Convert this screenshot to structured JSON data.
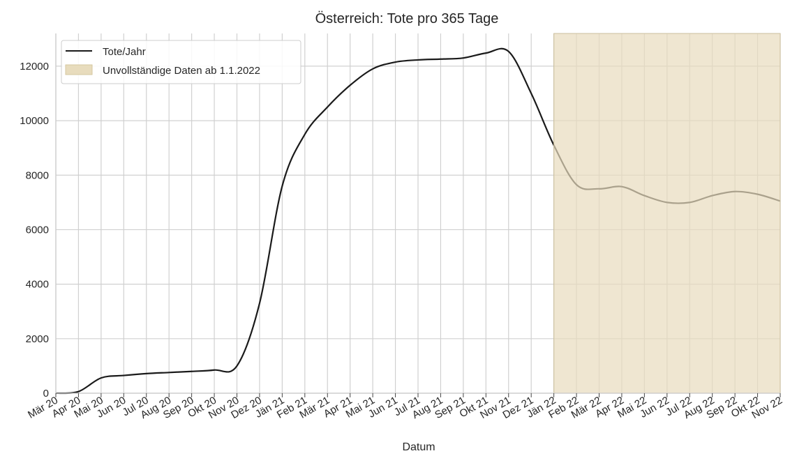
{
  "chart_data": {
    "type": "line",
    "title": "Österreich: Tote pro 365 Tage",
    "xlabel": "Datum",
    "ylabel": "",
    "x_ticks": [
      "Mär 20",
      "Apr 20",
      "Mai 20",
      "Jun 20",
      "Jul 20",
      "Aug 20",
      "Sep 20",
      "Okt 20",
      "Nov 20",
      "Dez 20",
      "Jän 21",
      "Feb 21",
      "Mär 21",
      "Apr 21",
      "Mai 21",
      "Jun 21",
      "Jul 21",
      "Aug 21",
      "Sep 21",
      "Okt 21",
      "Nov 21",
      "Dez 21",
      "Jän 22",
      "Feb 22",
      "Mär 22",
      "Apr 22",
      "Mai 22",
      "Jun 22",
      "Jul 22",
      "Aug 22",
      "Sep 22",
      "Okt 22",
      "Nov 22"
    ],
    "xlim": [
      "Mär 20",
      "Nov 22"
    ],
    "y_ticks": [
      0,
      2000,
      4000,
      6000,
      8000,
      10000,
      12000
    ],
    "ylim": [
      0,
      13200
    ],
    "grid": true,
    "legend_position": "top-left",
    "series": [
      {
        "name": "Tote/Jahr",
        "color": "#1a1a1a",
        "points": [
          [
            "Mär 20",
            0
          ],
          [
            "Apr 20",
            60
          ],
          [
            "Mai 20",
            560
          ],
          [
            "Jun 20",
            650
          ],
          [
            "Jul 20",
            720
          ],
          [
            "Aug 20",
            760
          ],
          [
            "Sep 20",
            800
          ],
          [
            "Okt 20",
            850
          ],
          [
            "Nov 20",
            1000
          ],
          [
            "Dez 20",
            3300
          ],
          [
            "Jän 21",
            7600
          ],
          [
            "Feb 21",
            9500
          ],
          [
            "Mär 21",
            10500
          ],
          [
            "Apr 21",
            11300
          ],
          [
            "Mai 21",
            11900
          ],
          [
            "Jun 21",
            12150
          ],
          [
            "Jul 21",
            12230
          ],
          [
            "Aug 21",
            12260
          ],
          [
            "Sep 21",
            12300
          ],
          [
            "Okt 21",
            12480
          ],
          [
            "Nov 21",
            12540
          ],
          [
            "Dez 21",
            11000
          ],
          [
            "Jän 22",
            9100
          ],
          [
            "Feb 22",
            7650
          ],
          [
            "Mär 22",
            7500
          ],
          [
            "Apr 22",
            7580
          ],
          [
            "Mai 22",
            7250
          ],
          [
            "Jun 22",
            7000
          ],
          [
            "Jul 22",
            7000
          ],
          [
            "Aug 22",
            7250
          ],
          [
            "Sep 22",
            7400
          ],
          [
            "Okt 22",
            7300
          ],
          [
            "Nov 22",
            7050
          ]
        ]
      }
    ],
    "shaded_region": {
      "label": "Unvollständige Daten ab 1.1.2022",
      "from": "Jän 22",
      "to": "Nov 22",
      "color": "#e8dcbd"
    }
  }
}
